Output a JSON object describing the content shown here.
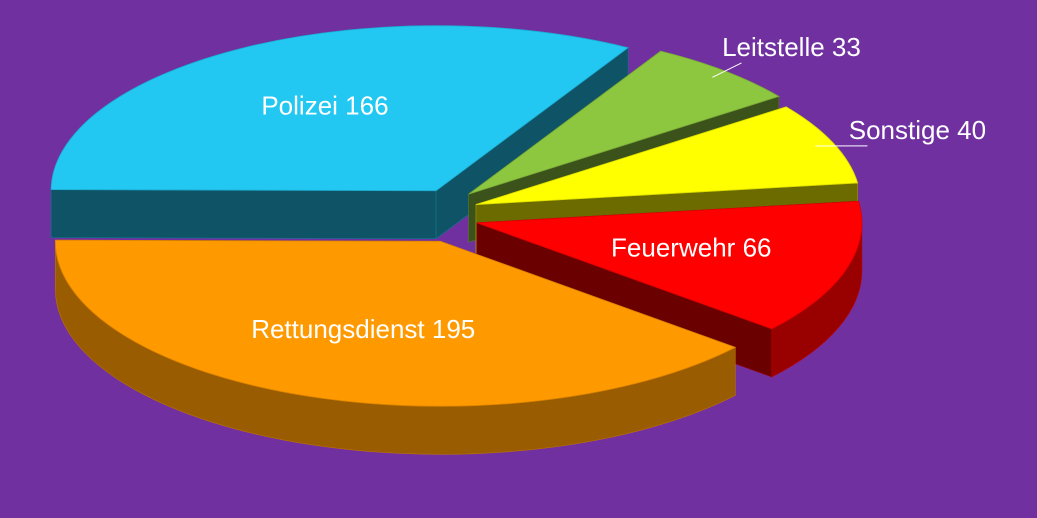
{
  "chart_data": {
    "type": "pie",
    "categories": [
      "Rettungsdienst",
      "Polizei",
      "Leitstelle",
      "Sonstige",
      "Feuerwehr"
    ],
    "values": [
      195,
      166,
      33,
      40,
      66
    ],
    "colors": [
      "#ff9900",
      "#22c8f2",
      "#8dc63f",
      "#ffff00",
      "#ff0000"
    ],
    "exploded": true,
    "three_d": true
  }
}
